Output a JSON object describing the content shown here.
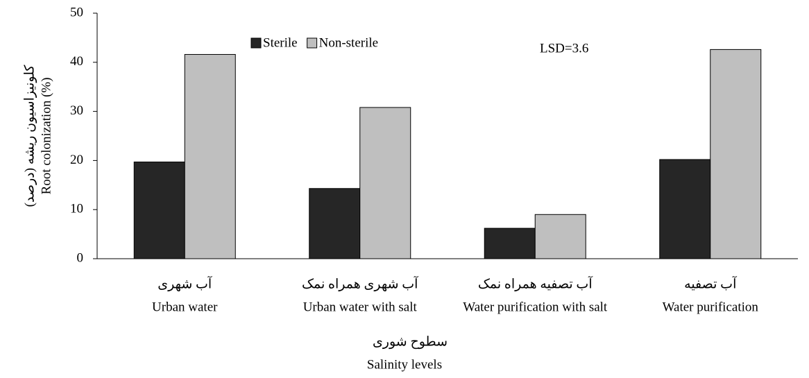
{
  "chart_data": {
    "type": "bar",
    "x_label": "Salinity levels",
    "x_label_fa": "سطوح شوری",
    "y_label": "Root colonization (%)",
    "y_label_fa": "کلونیزاسیون ریشه (درصد)",
    "annotation": "LSD=3.6",
    "categories": [
      "Urban water",
      "Urban water with salt",
      "Water purification with salt",
      "Water purification"
    ],
    "categories_fa": [
      "آب شهری",
      "آب شهری همراه نمک",
      "آب تصفیه  همراه نمک",
      "آب تصفیه"
    ],
    "series": [
      {
        "name": "Sterile",
        "color": "#262626",
        "values": [
          19.7,
          14.3,
          6.2,
          20.2
        ]
      },
      {
        "name": "Non-sterile",
        "color": "#bfbfbf",
        "values": [
          41.6,
          30.8,
          9.0,
          42.6
        ]
      }
    ],
    "ylim": [
      0,
      50
    ],
    "yticks": [
      0,
      10,
      20,
      30,
      40,
      50
    ],
    "grid": false,
    "legend": "top"
  }
}
